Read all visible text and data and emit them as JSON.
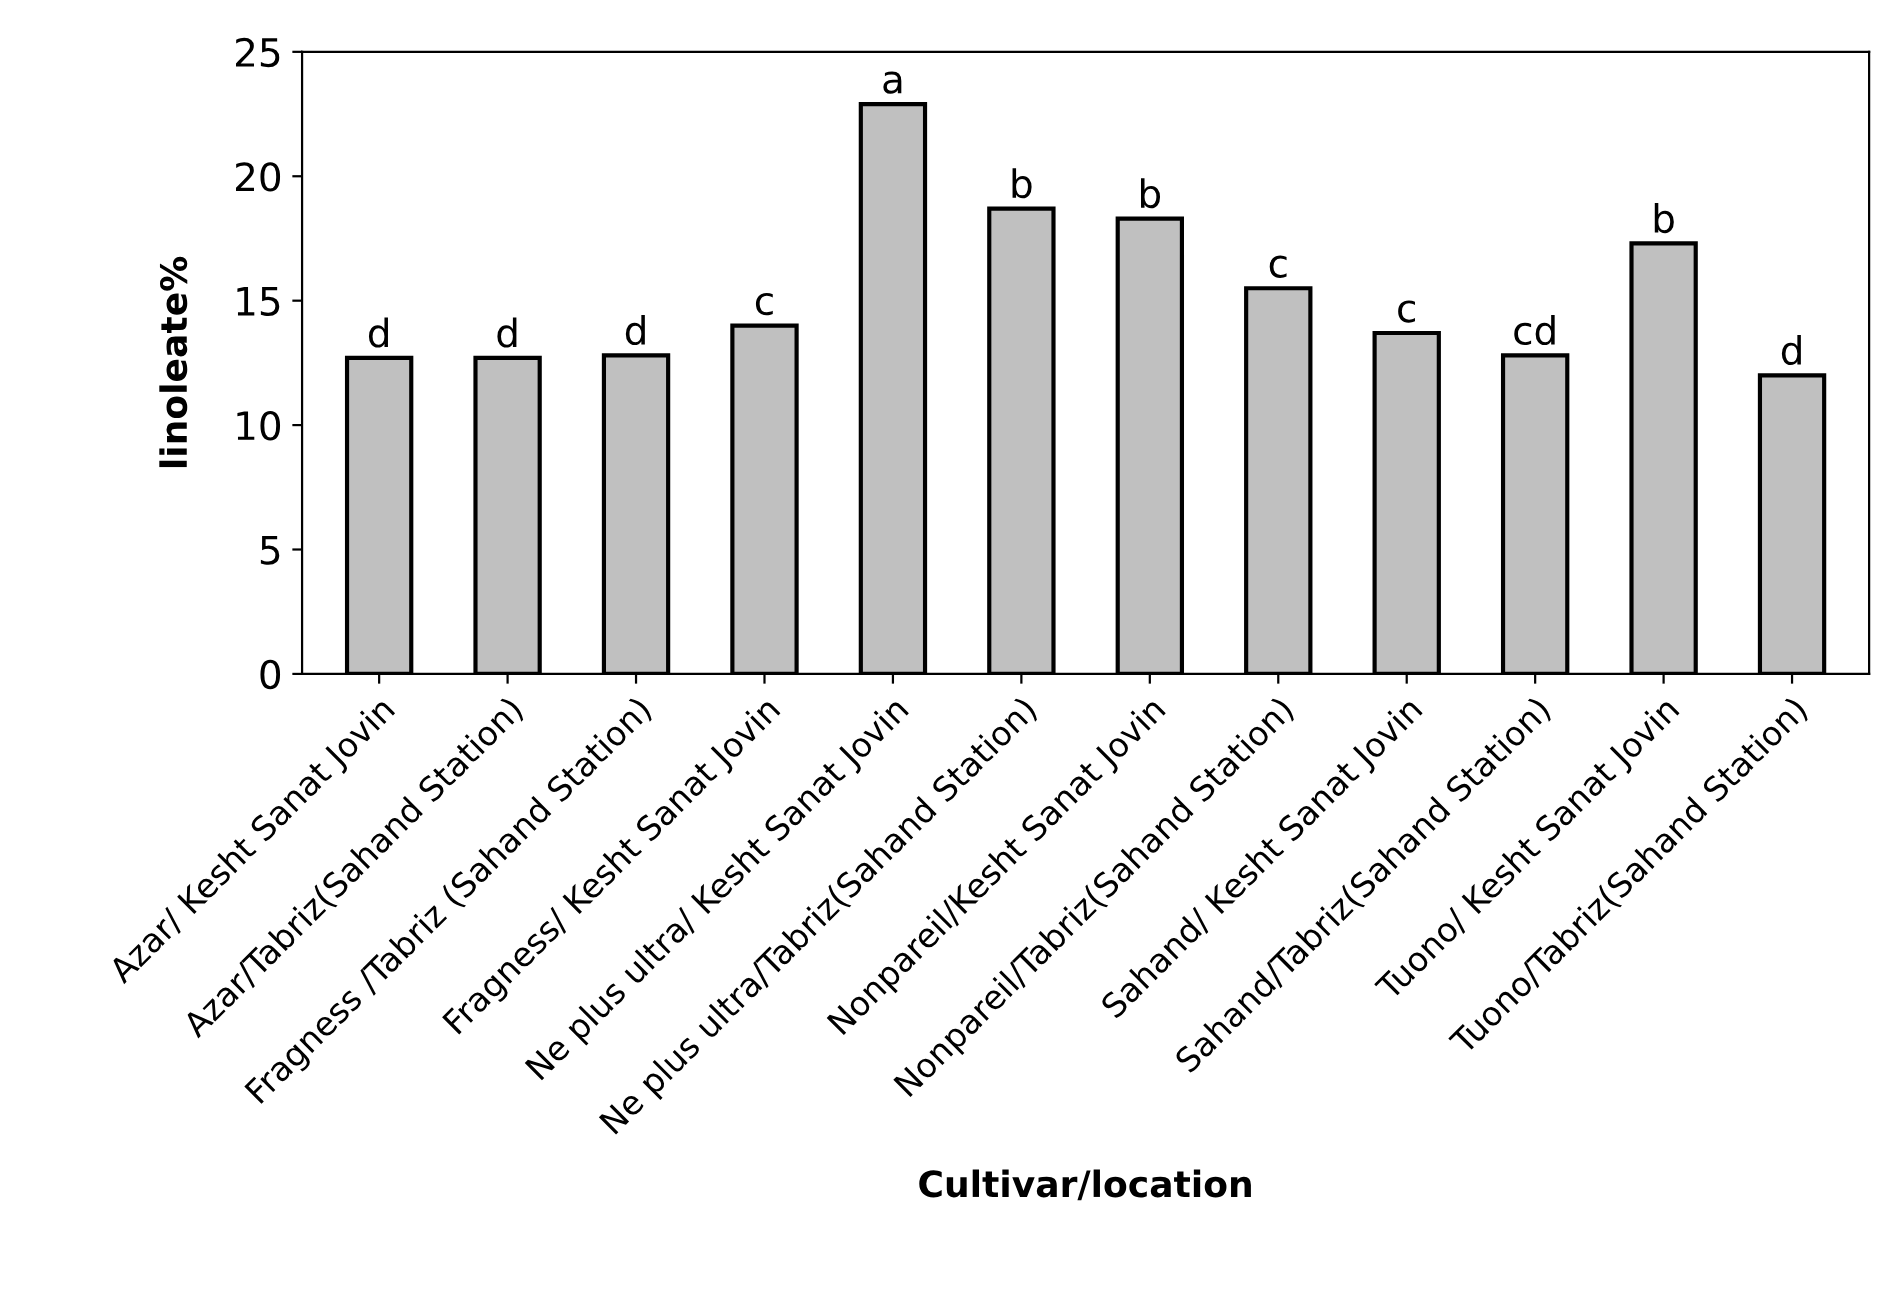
{
  "chart_data": {
    "type": "bar",
    "xlabel": "Cultivar/location",
    "ylabel": "linoleate%",
    "categories": [
      "Azar/ Kesht Sanat Jovin",
      "Azar/Tabriz(Sahand Station)",
      "Fragness /Tabriz (Sahand Station)",
      "Fragness/ Kesht Sanat Jovin",
      "Ne plus ultra/ Kesht Sanat Jovin",
      "Ne plus ultra/Tabriz(Sahand Station)",
      "Nonpareil/Kesht Sanat Jovin",
      "Nonpareil/Tabriz(Sahand Station)",
      "Sahand/ Kesht Sanat Jovin",
      "Sahand/Tabriz(Sahand Station)",
      "Tuono/ Kesht Sanat Jovin",
      "Tuono/Tabriz(Sahand Station)"
    ],
    "values": [
      12.7,
      12.7,
      12.8,
      14.0,
      22.9,
      18.7,
      18.3,
      15.5,
      13.7,
      12.8,
      17.3,
      12.0
    ],
    "color": "#c0c0c0",
    "ylim": [
      0,
      25
    ],
    "yticks": [
      0,
      5,
      10,
      15,
      20,
      25
    ],
    "grid": false,
    "legend": false,
    "annotations": [
      {
        "text": "d",
        "x": "Azar/ Kesht Sanat Jovin",
        "y": 12.7
      },
      {
        "text": "d",
        "x": "Azar/Tabriz(Sahand Station)",
        "y": 12.7
      },
      {
        "text": "d",
        "x": "Fragness /Tabriz (Sahand Station)",
        "y": 12.8
      },
      {
        "text": "c",
        "x": "Fragness/ Kesht Sanat Jovin",
        "y": 14.0
      },
      {
        "text": "a",
        "x": "Ne plus ultra/ Kesht Sanat Jovin",
        "y": 22.9
      },
      {
        "text": "b",
        "x": "Ne plus ultra/Tabriz(Sahand Station)",
        "y": 18.7
      },
      {
        "text": "b",
        "x": "Nonpareil/Kesht Sanat Jovin",
        "y": 18.3
      },
      {
        "text": "c",
        "x": "Nonpareil/Tabriz(Sahand Station)",
        "y": 15.5
      },
      {
        "text": "c",
        "x": "Sahand/ Kesht Sanat Jovin",
        "y": 13.7
      },
      {
        "text": "cd",
        "x": "Sahand/Tabriz(Sahand Station)",
        "y": 12.8
      },
      {
        "text": "b",
        "x": "Tuono/ Kesht Sanat Jovin",
        "y": 17.3
      },
      {
        "text": "d",
        "x": "Tuono/Tabriz(Sahand Station)",
        "y": 12.0
      }
    ]
  }
}
